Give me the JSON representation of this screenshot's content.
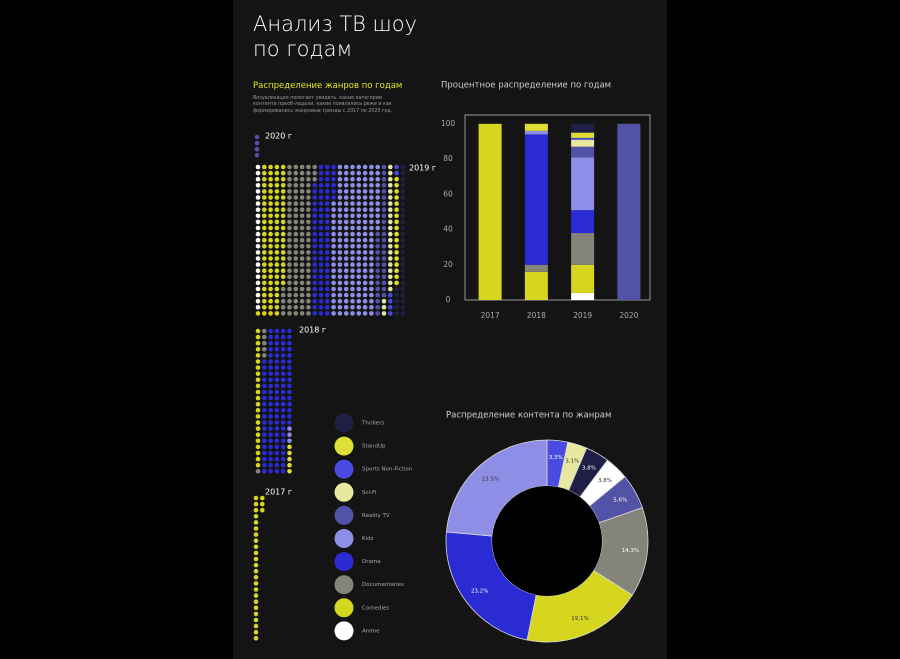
{
  "header": {
    "title": "Анализ ТВ шоу по годам"
  },
  "chart_data": [
    {
      "type": "dot_grid",
      "title": "Распределение жанров по годам",
      "description": "Визуализация помогает увидеть, какие категории контента преоб-ладали, какие появлялись реже и как формировались жанровые тренды с 2017 по 2020 год.",
      "groups": [
        {
          "label": "2020 г",
          "values": [
            0,
            0,
            0,
            0,
            0,
            4,
            0,
            0,
            0,
            0
          ]
        },
        {
          "label": "2019 г",
          "values": [
            24,
            96,
            108,
            78,
            180,
            36,
            24,
            6,
            18,
            30
          ]
        },
        {
          "label": "2018 г",
          "values": [
            0,
            23,
            6,
            107,
            3,
            0,
            0,
            0,
            5,
            0
          ]
        },
        {
          "label": "2017 г",
          "values": [
            0,
            27,
            0,
            0,
            0,
            0,
            0,
            0,
            0,
            0
          ]
        }
      ]
    },
    {
      "type": "stacked_bar",
      "title": "Процентное распределение по годам",
      "categories": [
        "2017",
        "2018",
        "2019",
        "2020"
      ],
      "series": [
        {
          "name": "Anime",
          "color": "#ffffff",
          "values": [
            0,
            0,
            4,
            0
          ]
        },
        {
          "name": "Comedies",
          "color": "#d6d61f",
          "values": [
            100,
            16,
            16,
            0
          ]
        },
        {
          "name": "Documentaries",
          "color": "#84847a",
          "values": [
            0,
            4,
            18,
            0
          ]
        },
        {
          "name": "Drama",
          "color": "#2b2bd4",
          "values": [
            0,
            74,
            13,
            0
          ]
        },
        {
          "name": "Kids",
          "color": "#8e8ee6",
          "values": [
            0,
            2,
            30,
            0
          ]
        },
        {
          "name": "Reality TV",
          "color": "#5252a6",
          "values": [
            0,
            0,
            6,
            100
          ]
        },
        {
          "name": "Sci-Fi",
          "color": "#e8e8a0",
          "values": [
            0,
            0,
            4,
            0
          ]
        },
        {
          "name": "Sports Non-Fiction",
          "color": "#4a4ae0",
          "values": [
            0,
            0,
            1,
            0
          ]
        },
        {
          "name": "StandUp",
          "color": "#dede34",
          "values": [
            0,
            4,
            3,
            0
          ]
        },
        {
          "name": "Thrillers",
          "color": "#1f1f45",
          "values": [
            0,
            0,
            5,
            0
          ]
        }
      ],
      "ylim": [
        0,
        105
      ],
      "yticks": [
        0,
        20,
        40,
        60,
        80,
        100
      ]
    },
    {
      "type": "donut",
      "title": "Распределение контента по жанрам",
      "values": [
        3.3,
        3.1,
        3.8,
        3.8,
        5.6,
        14.3,
        19.1,
        23.2,
        23.5
      ],
      "value_labels": [
        "3,3%",
        "3,1%",
        "3,8%",
        "3,8%",
        "5,6%",
        "14,3%",
        "19,1%",
        "23,2%",
        "23,5%"
      ],
      "colors": [
        "#4a4ae0",
        "#e8e8a0",
        "#1f1f45",
        "#ffffff",
        "#5252a6",
        "#84847a",
        "#d6d61f",
        "#2b2bd4",
        "#8e8ee6"
      ]
    }
  ]
}
